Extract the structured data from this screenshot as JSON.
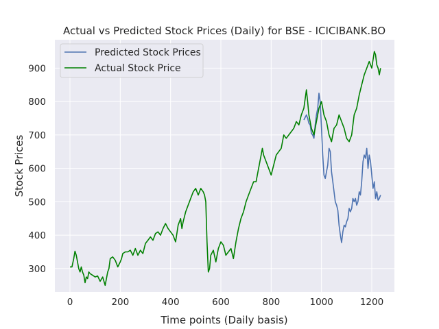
{
  "chart_data": {
    "type": "line",
    "title": "Actual vs Predicted Stock Prices (Daily) for BSE - ICICIBANK.BO",
    "xlabel": "Time points (Daily basis)",
    "ylabel": "Stock Prices",
    "xlim": [
      -60,
      1290
    ],
    "ylim": [
      230,
      985
    ],
    "x_ticks": [
      0,
      200,
      400,
      600,
      800,
      1000,
      1200
    ],
    "y_ticks": [
      300,
      400,
      500,
      600,
      700,
      800,
      900
    ],
    "grid": true,
    "legend_position": "top-left",
    "colors": {
      "background": "#eaeaf2",
      "grid": "#ffffff",
      "predicted": "#4c72b0",
      "actual": "#008000"
    },
    "series": [
      {
        "name": "Predicted Stock Prices",
        "color": "#4c72b0",
        "x": [
          930,
          940,
          945,
          950,
          955,
          960,
          965,
          970,
          975,
          980,
          985,
          990,
          995,
          1000,
          1005,
          1010,
          1015,
          1020,
          1025,
          1030,
          1035,
          1040,
          1045,
          1050,
          1055,
          1060,
          1065,
          1070,
          1075,
          1080,
          1085,
          1090,
          1095,
          1100,
          1105,
          1110,
          1115,
          1120,
          1125,
          1130,
          1135,
          1140,
          1145,
          1150,
          1155,
          1160,
          1165,
          1170,
          1175,
          1180,
          1185,
          1190,
          1195,
          1200,
          1205,
          1210,
          1215,
          1220,
          1225,
          1230,
          1235
        ],
        "y": [
          745,
          760,
          750,
          735,
          730,
          705,
          700,
          690,
          730,
          760,
          780,
          825,
          800,
          720,
          640,
          580,
          570,
          590,
          610,
          660,
          650,
          590,
          560,
          530,
          500,
          490,
          475,
          430,
          400,
          378,
          410,
          430,
          425,
          440,
          450,
          480,
          470,
          480,
          510,
          500,
          510,
          490,
          500,
          530,
          520,
          560,
          620,
          640,
          630,
          660,
          600,
          640,
          620,
          580,
          540,
          560,
          510,
          530,
          505,
          510,
          520
        ]
      },
      {
        "name": "Actual Stock Price",
        "color": "#008000",
        "x": [
          0,
          8,
          15,
          20,
          25,
          30,
          35,
          40,
          45,
          50,
          55,
          60,
          65,
          70,
          75,
          80,
          90,
          100,
          110,
          120,
          130,
          140,
          150,
          155,
          160,
          170,
          180,
          190,
          200,
          205,
          210,
          220,
          230,
          240,
          250,
          260,
          270,
          280,
          290,
          300,
          310,
          320,
          330,
          340,
          350,
          360,
          370,
          380,
          390,
          400,
          410,
          420,
          430,
          440,
          445,
          450,
          460,
          470,
          480,
          490,
          500,
          510,
          520,
          530,
          535,
          540,
          545,
          550,
          555,
          560,
          570,
          580,
          590,
          600,
          610,
          620,
          630,
          640,
          650,
          660,
          670,
          680,
          690,
          700,
          710,
          720,
          730,
          740,
          750,
          760,
          765,
          770,
          780,
          790,
          800,
          810,
          820,
          830,
          840,
          850,
          860,
          870,
          880,
          890,
          900,
          910,
          920,
          930,
          940,
          945,
          950,
          960,
          970,
          980,
          990,
          1000,
          1010,
          1020,
          1030,
          1040,
          1050,
          1060,
          1070,
          1080,
          1090,
          1100,
          1110,
          1120,
          1130,
          1140,
          1150,
          1160,
          1170,
          1180,
          1190,
          1200,
          1210,
          1215,
          1220,
          1225,
          1230,
          1235
        ],
        "y": [
          305,
          305,
          330,
          352,
          340,
          320,
          300,
          290,
          305,
          290,
          280,
          258,
          275,
          270,
          290,
          285,
          280,
          275,
          278,
          262,
          275,
          250,
          290,
          300,
          330,
          335,
          325,
          305,
          320,
          330,
          345,
          350,
          350,
          355,
          340,
          360,
          340,
          355,
          345,
          375,
          385,
          395,
          385,
          405,
          410,
          400,
          420,
          435,
          420,
          410,
          400,
          380,
          430,
          450,
          420,
          440,
          470,
          490,
          510,
          530,
          540,
          520,
          540,
          530,
          520,
          500,
          380,
          290,
          300,
          340,
          355,
          320,
          360,
          380,
          370,
          340,
          350,
          360,
          330,
          380,
          420,
          450,
          470,
          500,
          520,
          540,
          560,
          560,
          600,
          640,
          660,
          640,
          620,
          600,
          580,
          610,
          640,
          650,
          660,
          700,
          690,
          700,
          710,
          720,
          740,
          730,
          760,
          780,
          835,
          800,
          760,
          720,
          700,
          740,
          780,
          800,
          760,
          740,
          700,
          680,
          720,
          730,
          760,
          740,
          720,
          690,
          680,
          700,
          760,
          780,
          820,
          850,
          880,
          900,
          920,
          900,
          950,
          940,
          910,
          900,
          880,
          900
        ]
      }
    ]
  }
}
